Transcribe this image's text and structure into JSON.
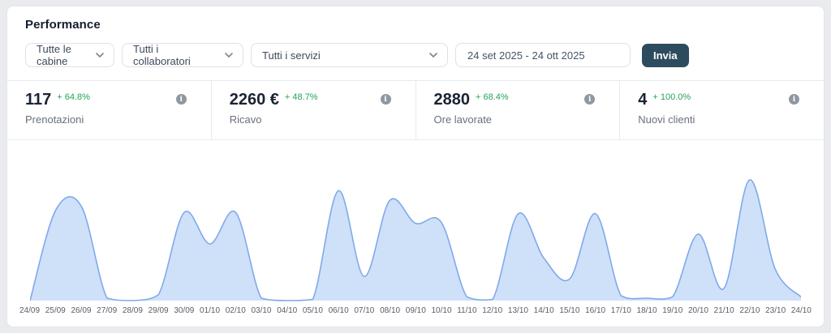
{
  "panel": {
    "title": "Performance"
  },
  "filters": {
    "cabins_dropdown": "Tutte le cabine",
    "collaborators_dropdown": "Tutti i collaboratori",
    "services_dropdown": "Tutti i servizi",
    "date_range": "24 set 2025 - 24 ott 2025",
    "submit_label": "Invia"
  },
  "stats": [
    {
      "value": "117",
      "delta": "+ 64.8%",
      "label": "Prenotazioni"
    },
    {
      "value": "2260 €",
      "delta": "+ 48.7%",
      "label": "Ricavo"
    },
    {
      "value": "2880",
      "delta": "+ 68.4%",
      "label": "Ore lavorate"
    },
    {
      "value": "4",
      "delta": "+ 100.0%",
      "label": "Nuovi clienti"
    }
  ],
  "chart_data": {
    "type": "area",
    "title": "",
    "xlabel": "",
    "ylabel": "",
    "categories": [
      "24/09",
      "25/09",
      "26/09",
      "27/09",
      "28/09",
      "29/09",
      "30/09",
      "01/10",
      "02/10",
      "03/10",
      "04/10",
      "05/10",
      "06/10",
      "07/10",
      "08/10",
      "09/10",
      "10/10",
      "11/10",
      "12/10",
      "13/10",
      "14/10",
      "15/10",
      "16/10",
      "17/10",
      "18/10",
      "19/10",
      "20/10",
      "21/10",
      "22/10",
      "23/10",
      "24/10"
    ],
    "values": [
      0,
      75,
      78,
      2,
      0,
      5,
      73,
      47,
      73,
      2,
      0,
      1,
      91,
      20,
      83,
      64,
      65,
      3,
      1,
      72,
      35,
      18,
      72,
      4,
      2,
      3,
      55,
      10,
      100,
      26,
      3
    ],
    "ylim": [
      0,
      100
    ],
    "y_axis_visible": false,
    "grid": false,
    "legend": false,
    "smooth": true,
    "fill_color": "#cfe0f9",
    "line_color": "#7fa9ea"
  },
  "colors": {
    "positive_green": "#23a455",
    "submit_button_bg": "#2d4b5e",
    "panel_bg": "#ffffff",
    "page_bg": "#e9ebee"
  }
}
